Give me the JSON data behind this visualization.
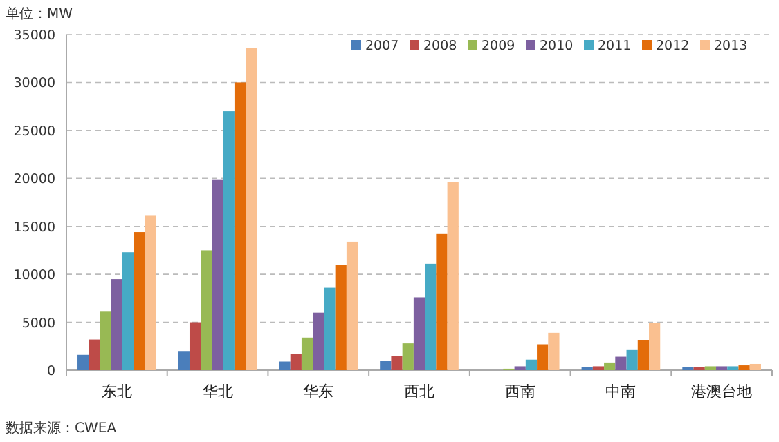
{
  "chart_data": {
    "type": "bar",
    "ylabel": "单位：MW",
    "categories": [
      "东北",
      "华北",
      "华东",
      "西北",
      "西南",
      "中南",
      "港澳台地"
    ],
    "series": [
      {
        "name": "2007",
        "color": "#4a7ebb",
        "values": [
          1600,
          2000,
          900,
          1000,
          0,
          300,
          300
        ]
      },
      {
        "name": "2008",
        "color": "#be4b48",
        "values": [
          3200,
          5000,
          1700,
          1500,
          0,
          400,
          300
        ]
      },
      {
        "name": "2009",
        "color": "#98b954",
        "values": [
          6100,
          12500,
          3400,
          2800,
          150,
          800,
          400
        ]
      },
      {
        "name": "2010",
        "color": "#7d60a0",
        "values": [
          9500,
          19900,
          6000,
          7600,
          400,
          1400,
          400
        ]
      },
      {
        "name": "2011",
        "color": "#46aac5",
        "values": [
          12300,
          27000,
          8600,
          11100,
          1100,
          2100,
          400
        ]
      },
      {
        "name": "2012",
        "color": "#e36c09",
        "values": [
          14400,
          30000,
          11000,
          14200,
          2700,
          3100,
          500
        ]
      },
      {
        "name": "2013",
        "color": "#fac090",
        "values": [
          16100,
          33600,
          13400,
          19600,
          3900,
          4900,
          650
        ]
      }
    ],
    "ylim": [
      0,
      35000
    ],
    "yticks": [
      0,
      5000,
      10000,
      15000,
      20000,
      25000,
      30000,
      35000
    ],
    "grid": "y",
    "legend": "top right",
    "annotations": [
      "数据来源：CWEA"
    ]
  }
}
